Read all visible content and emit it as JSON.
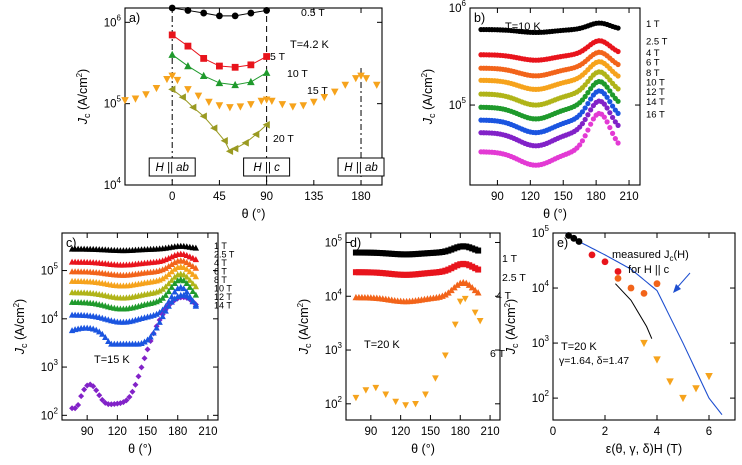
{
  "colors": {
    "0.5 T": "#000000",
    "1 T": "#000000",
    "2.5 T": "#e8141c",
    "4 T": "#f2641a",
    "5 T": "#e8141c",
    "6 T": "#f6a31c",
    "8 T": "#b0b418",
    "10 T": "#1f9a2c",
    "12 T": "#1b55e0",
    "14 T": "#8222c8",
    "15 T": "#f6a31c",
    "16 T": "#e33ad4",
    "20 T": "#9a9a22",
    "curve": "#1e4fd0"
  },
  "chart_data": [
    {
      "id": "a",
      "type": "scatter",
      "panel_label": "a)",
      "xlabel": "θ (°)",
      "ylabel_main": "J",
      "ylabel_sub": "c",
      "ylabel_unit": " (A/cm",
      "ylabel_sup": "2",
      "ylabel_close": ")",
      "xlim": [
        -45,
        200
      ],
      "ylim": [
        10000,
        1500000
      ],
      "yscale": "log",
      "xticks": [
        0,
        45,
        90,
        135,
        180
      ],
      "yticks": [
        {
          "value": 10000,
          "base": "10",
          "exp": "4"
        },
        {
          "value": 100000,
          "base": "10",
          "exp": "5"
        },
        {
          "value": 1000000,
          "base": "10",
          "exp": "6"
        }
      ],
      "annotations": {
        "temperature": "T=4.2 K"
      },
      "boxes": [
        {
          "x": 0,
          "pre": "H || ",
          "var": "ab"
        },
        {
          "x": 90,
          "pre": "H || ",
          "var": "c"
        },
        {
          "x": 180,
          "pre": "H || ",
          "var": "ab"
        }
      ],
      "series": [
        {
          "name": "0.5 T",
          "marker": "circle",
          "line": true,
          "x": [
            0,
            15,
            30,
            45,
            60,
            75,
            90
          ],
          "y": [
            1500000,
            1400000,
            1300000,
            1200000,
            1200000,
            1300000,
            1400000
          ]
        },
        {
          "name": "5 T",
          "marker": "square",
          "line": true,
          "x": [
            0,
            15,
            30,
            45,
            60,
            75,
            90
          ],
          "y": [
            700000,
            510000,
            360000,
            290000,
            280000,
            300000,
            380000
          ]
        },
        {
          "name": "10 T",
          "marker": "triangle-up",
          "line": true,
          "x": [
            0,
            15,
            30,
            45,
            60,
            75,
            90
          ],
          "y": [
            400000,
            290000,
            220000,
            180000,
            170000,
            185000,
            240000
          ]
        },
        {
          "name": "15 T",
          "marker": "triangle-down",
          "line": false,
          "x": [
            -45,
            -35,
            -25,
            -15,
            -5,
            0,
            5,
            15,
            25,
            35,
            45,
            55,
            65,
            75,
            85,
            90,
            95,
            105,
            115,
            125,
            135,
            145,
            155,
            165,
            175,
            180,
            185,
            195
          ],
          "y": [
            110000,
            115000,
            130000,
            155000,
            200000,
            220000,
            195000,
            150000,
            125000,
            105000,
            95000,
            90000,
            92000,
            98000,
            108000,
            112000,
            108000,
            98000,
            92000,
            95000,
            105000,
            120000,
            140000,
            170000,
            205000,
            220000,
            205000,
            170000
          ]
        },
        {
          "name": "20 T",
          "marker": "triangle-left",
          "line": true,
          "x": [
            0,
            10,
            20,
            30,
            40,
            50,
            55,
            60,
            70,
            80,
            90
          ],
          "y": [
            150000,
            120000,
            90000,
            70000,
            50000,
            35000,
            26000,
            28000,
            33000,
            42000,
            55000
          ]
        }
      ]
    },
    {
      "id": "b",
      "type": "scatter",
      "panel_label": "b)",
      "xlabel": "θ (°)",
      "ylabel_main": "J",
      "ylabel_sub": "c",
      "ylabel_unit": " (A/cm",
      "ylabel_sup": "2",
      "ylabel_close": ")",
      "xlim": [
        65,
        220
      ],
      "ylim": [
        15000,
        1000000
      ],
      "yscale": "log",
      "xticks": [
        90,
        120,
        150,
        180,
        210
      ],
      "yticks": [
        {
          "value": 100000,
          "base": "10",
          "exp": "5"
        },
        {
          "value": 1000000,
          "base": "10",
          "exp": "6"
        }
      ],
      "annotations": {
        "temperature": "T=10 K"
      },
      "series": [
        {
          "name": "1 T",
          "base": 600000,
          "min": 560000,
          "peak": 700000
        },
        {
          "name": "2.5 T",
          "base": 330000,
          "min": 290000,
          "peak": 460000
        },
        {
          "name": "4 T",
          "base": 240000,
          "min": 200000,
          "peak": 350000
        },
        {
          "name": "6 T",
          "base": 180000,
          "min": 145000,
          "peak": 280000
        },
        {
          "name": "8 T",
          "base": 130000,
          "min": 100000,
          "peak": 220000
        },
        {
          "name": "10 T",
          "base": 95000,
          "min": 72000,
          "peak": 175000
        },
        {
          "name": "12 T",
          "base": 70000,
          "min": 52000,
          "peak": 140000
        },
        {
          "name": "14 T",
          "base": 52000,
          "min": 38000,
          "peak": 110000
        },
        {
          "name": "16 T",
          "base": 33000,
          "min": 24000,
          "peak": 82000
        }
      ]
    },
    {
      "id": "c",
      "type": "scatter",
      "panel_label": "c)",
      "xlabel": "θ (°)",
      "ylabel_main": "J",
      "ylabel_sub": "c",
      "ylabel_unit": " (A/cm",
      "ylabel_sup": "2",
      "ylabel_close": ")",
      "xlim": [
        65,
        220
      ],
      "ylim": [
        80,
        600000
      ],
      "yscale": "log",
      "xticks": [
        90,
        120,
        150,
        180,
        210
      ],
      "yticks": [
        {
          "value": 100,
          "base": "10",
          "exp": "2"
        },
        {
          "value": 1000,
          "base": "10",
          "exp": "3"
        },
        {
          "value": 10000,
          "base": "10",
          "exp": "4"
        },
        {
          "value": 100000,
          "base": "10",
          "exp": "5"
        }
      ],
      "annotations": {
        "temperature": "T=15 K"
      },
      "series": [
        {
          "name": "1 T",
          "base": 280000,
          "min": 260000,
          "peak": 320000
        },
        {
          "name": "2.5 T",
          "base": 150000,
          "min": 130000,
          "peak": 220000
        },
        {
          "name": "4 T",
          "base": 95000,
          "min": 80000,
          "peak": 160000
        },
        {
          "name": "6 T",
          "base": 60000,
          "min": 48000,
          "peak": 120000
        },
        {
          "name": "8 T",
          "base": 35000,
          "min": 27000,
          "peak": 85000
        },
        {
          "name": "10 T",
          "base": 22000,
          "min": 16000,
          "peak": 65000
        },
        {
          "name": "12 T",
          "base": 12000,
          "min": 8500,
          "peak": 45000
        },
        {
          "name": "14 T",
          "base": 3500,
          "min": 3000,
          "peak": 28000
        }
      ],
      "special": {
        "name": "14 T",
        "low": [
          200,
          330,
          200,
          150,
          250
        ]
      }
    },
    {
      "id": "d",
      "type": "scatter",
      "panel_label": "d)",
      "xlabel": "θ (°)",
      "ylabel_main": "J",
      "ylabel_sub": "c",
      "ylabel_unit": " (A/cm",
      "ylabel_sup": "2",
      "ylabel_close": ")",
      "xlim": [
        65,
        220
      ],
      "ylim": [
        50,
        150000
      ],
      "yscale": "log",
      "xticks": [
        90,
        120,
        150,
        180,
        210
      ],
      "yticks": [
        {
          "value": 100,
          "base": "10",
          "exp": "2"
        },
        {
          "value": 1000,
          "base": "10",
          "exp": "3"
        },
        {
          "value": 10000,
          "base": "10",
          "exp": "4"
        },
        {
          "value": 100000,
          "base": "10",
          "exp": "5"
        }
      ],
      "annotations": {
        "temperature": "T=20 K"
      },
      "series": [
        {
          "name": "1 T",
          "base": 65000,
          "min": 60000,
          "peak": 85000
        },
        {
          "name": "2.5 T",
          "base": 28000,
          "min": 25000,
          "peak": 40000
        },
        {
          "name": "4 T",
          "base": 9500,
          "min": 8000,
          "peak": 18000
        },
        {
          "name": "6 T",
          "x": [
            75,
            85,
            95,
            105,
            115,
            125,
            135,
            145,
            155,
            165,
            175,
            180,
            185,
            195,
            200
          ],
          "y": [
            130,
            180,
            200,
            150,
            110,
            95,
            100,
            150,
            300,
            800,
            3000,
            8000,
            9000,
            5000,
            3500
          ]
        }
      ]
    },
    {
      "id": "e",
      "type": "scatter",
      "panel_label": "e)",
      "xlabel": "ε(θ, γ, δ)H (T)",
      "ylabel_main": "J",
      "ylabel_sub": "c",
      "ylabel_unit": " (A/cm",
      "ylabel_sup": "2",
      "ylabel_close": ")",
      "xlim": [
        0,
        7
      ],
      "ylim": [
        40,
        100000
      ],
      "yscale": "log",
      "xticks": [
        0,
        2,
        4,
        6
      ],
      "yticks": [
        {
          "value": 100,
          "base": "10",
          "exp": "2"
        },
        {
          "value": 1000,
          "base": "10",
          "exp": "3"
        },
        {
          "value": 10000,
          "base": "10",
          "exp": "4"
        },
        {
          "value": 100000,
          "base": "10",
          "exp": "5"
        }
      ],
      "annotations": {
        "temperature": "T=20 K",
        "params": "γ=1.64, δ=1.47",
        "measured_pre": "measured J",
        "measured_sub": "c",
        "measured_post": "(H)",
        "measured_line2": "for H || c"
      },
      "curve": {
        "x": [
          0.5,
          1,
          2,
          3,
          4,
          5,
          6,
          6.5
        ],
        "y": [
          100000,
          70000,
          40000,
          22000,
          9000,
          1000,
          100,
          50
        ]
      },
      "series": [
        {
          "name": "1 T",
          "x": [
            0.6,
            0.8,
            1.0
          ],
          "y": [
            90000,
            80000,
            70000
          ]
        },
        {
          "name": "2.5 T",
          "x": [
            1.5,
            2.0,
            2.5
          ],
          "y": [
            40000,
            30000,
            20000
          ]
        },
        {
          "name": "4 T",
          "x": [
            2.5,
            3.0,
            3.5,
            4.0
          ],
          "y": [
            15000,
            10000,
            8000,
            12000
          ]
        },
        {
          "name": "6 T",
          "x": [
            3.5,
            4.0,
            4.5,
            5.0,
            5.5,
            6.0
          ],
          "y": [
            1000,
            500,
            200,
            100,
            150,
            250
          ]
        }
      ]
    }
  ]
}
